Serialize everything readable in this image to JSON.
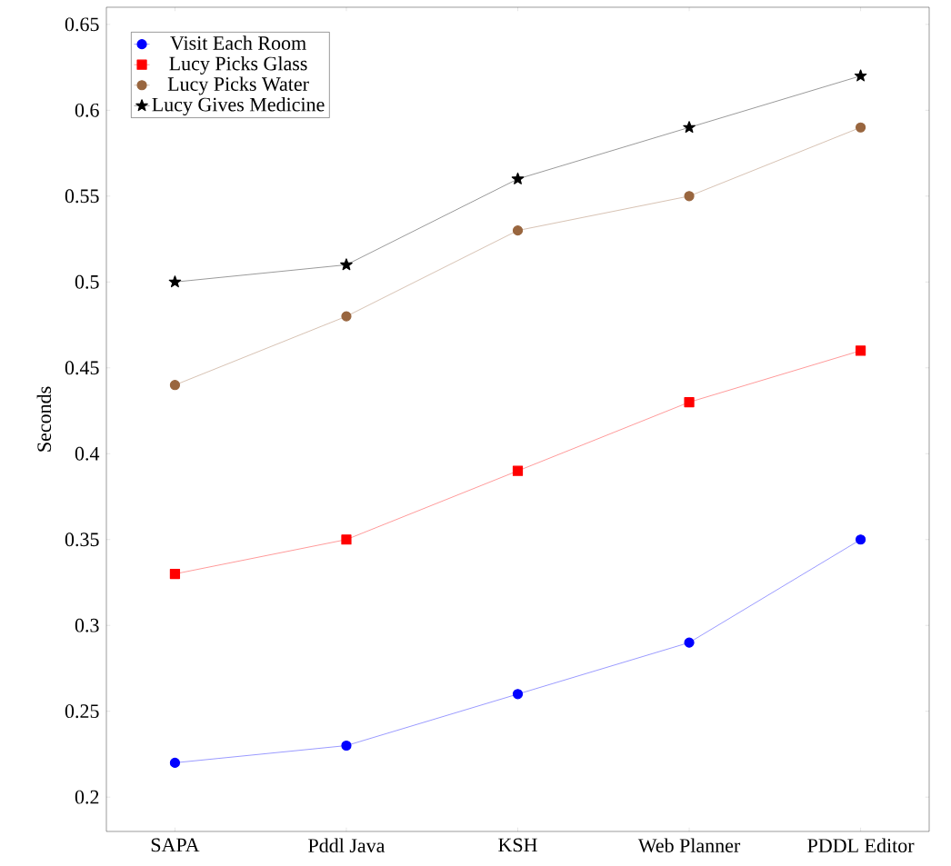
{
  "chart_data": {
    "type": "line",
    "ylabel": "Seconds",
    "categories": [
      "SAPA",
      "Pddl Java",
      "KSH",
      "Web Planner",
      "PDDL Editor"
    ],
    "series": [
      {
        "name": "Visit Each Room",
        "color": "#0000ff",
        "marker": "circle",
        "values": [
          0.22,
          0.23,
          0.26,
          0.29,
          0.35
        ]
      },
      {
        "name": "Lucy Picks Glass",
        "color": "#ff0000",
        "marker": "square",
        "values": [
          0.33,
          0.35,
          0.39,
          0.43,
          0.46
        ]
      },
      {
        "name": "Lucy Picks Water",
        "color": "#99663f",
        "marker": "circle",
        "values": [
          0.44,
          0.48,
          0.53,
          0.55,
          0.59
        ]
      },
      {
        "name": "Lucy Gives Medicine",
        "color": "#000000",
        "marker": "star",
        "values": [
          0.5,
          0.51,
          0.56,
          0.59,
          0.62
        ]
      }
    ],
    "ylim": [
      0.18,
      0.66
    ],
    "yticks": [
      0.2,
      0.25,
      0.3,
      0.35,
      0.4,
      0.45,
      0.5,
      0.55,
      0.6,
      0.65
    ],
    "legend": "top left",
    "line_style": "solid"
  }
}
